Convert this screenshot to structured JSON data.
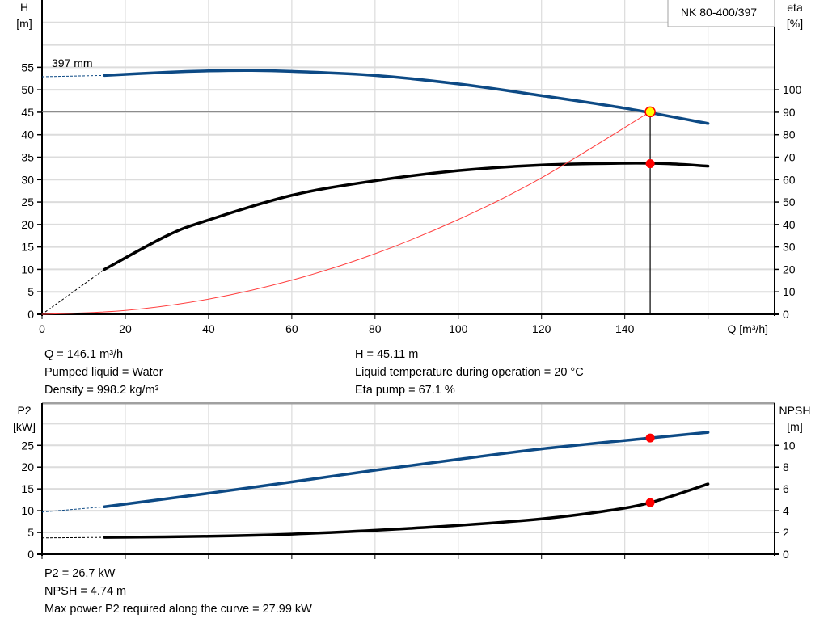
{
  "chart_data": [
    {
      "type": "line",
      "title": "NK 80-400/397",
      "xlabel": "Q [m³/h]",
      "ylabel": "H\n[m]",
      "y2label": "eta\n[%]",
      "xlim": [
        0,
        176
      ],
      "ylim": [
        0,
        70
      ],
      "y2lim": [
        0,
        140
      ],
      "xticks": [
        0,
        20,
        40,
        60,
        80,
        100,
        120,
        140,
        160
      ],
      "xticklabels": [
        "0",
        "20",
        "40",
        "60",
        "80",
        "100",
        "120",
        "140",
        ""
      ],
      "yticks": [
        0,
        5,
        10,
        15,
        20,
        25,
        30,
        35,
        40,
        45,
        50,
        55
      ],
      "ygrid_extra": [
        60,
        65
      ],
      "y2ticks": [
        0,
        10,
        20,
        30,
        40,
        50,
        60,
        70,
        80,
        90,
        100
      ],
      "grid": true,
      "annotation": "397 mm",
      "series": [
        {
          "id": "head",
          "axis": "left",
          "color": "#0d4a85",
          "x": [
            15,
            30,
            40,
            50,
            60,
            80,
            100,
            120,
            140,
            160
          ],
          "y": [
            53.2,
            53.9,
            54.2,
            54.3,
            54.1,
            53.2,
            51.3,
            48.7,
            45.9,
            42.5
          ],
          "extrapolated_from": [
            0,
            52.9
          ]
        },
        {
          "id": "efficiency",
          "axis": "right",
          "color": "#000000",
          "x": [
            15,
            30,
            40,
            60,
            80,
            100,
            120,
            140,
            150,
            160
          ],
          "y": [
            20,
            35,
            42,
            53,
            59.5,
            64,
            66.5,
            67.3,
            67.1,
            66
          ],
          "extrapolated_from": [
            0,
            0
          ]
        },
        {
          "id": "system-curve",
          "axis": "left",
          "color": "#ff4040",
          "x": [
            0,
            20,
            40,
            60,
            80,
            100,
            120,
            146.1
          ],
          "y": [
            0,
            0.85,
            3.38,
            7.6,
            13.5,
            21.1,
            30.4,
            45.11
          ]
        }
      ],
      "operating_point": {
        "Q": 146.1,
        "H": 45.11,
        "eta": 67.1
      }
    },
    {
      "type": "line",
      "xlabel": "",
      "ylabel": "P2\n[kW]",
      "y2label": "NPSH\n[m]",
      "xlim": [
        0,
        176
      ],
      "ylim": [
        0,
        34.7
      ],
      "y2lim": [
        0,
        13.88
      ],
      "xticks": [
        0,
        20,
        40,
        60,
        80,
        100,
        120,
        140,
        160
      ],
      "yticks": [
        0,
        5,
        10,
        15,
        20,
        25
      ],
      "ygrid_extra": [
        30
      ],
      "y2ticks": [
        0,
        2,
        4,
        6,
        8,
        10
      ],
      "grid": true,
      "series": [
        {
          "id": "power-p2",
          "axis": "left",
          "color": "#0d4a85",
          "x": [
            15,
            40,
            60,
            80,
            100,
            120,
            146.1,
            160
          ],
          "y": [
            10.9,
            14,
            16.6,
            19.3,
            21.8,
            24.2,
            26.7,
            27.99
          ],
          "extrapolated_from": [
            0,
            9.7
          ]
        },
        {
          "id": "npsh",
          "axis": "right",
          "color": "#000000",
          "x": [
            15,
            40,
            60,
            80,
            100,
            120,
            135,
            146.1,
            160
          ],
          "y": [
            1.55,
            1.65,
            1.85,
            2.2,
            2.65,
            3.25,
            3.95,
            4.74,
            6.45
          ],
          "extrapolated_from": [
            0,
            1.5
          ]
        }
      ],
      "operating_point": {
        "Q": 146.1,
        "P2": 26.7,
        "NPSH": 4.74
      }
    }
  ],
  "info": {
    "q": "Q = 146.1 m³/h",
    "liquid": "Pumped liquid = Water",
    "density": "Density = 998.2 kg/m³",
    "h": "H = 45.11 m",
    "temp": "Liquid temperature during operation = 20 °C",
    "eta": "Eta pump = 67.1 %",
    "p2": "P2 = 26.7 kW",
    "npsh": "NPSH = 4.74 m",
    "maxp2": "Max power P2 required along the curve = 27.99 kW"
  }
}
